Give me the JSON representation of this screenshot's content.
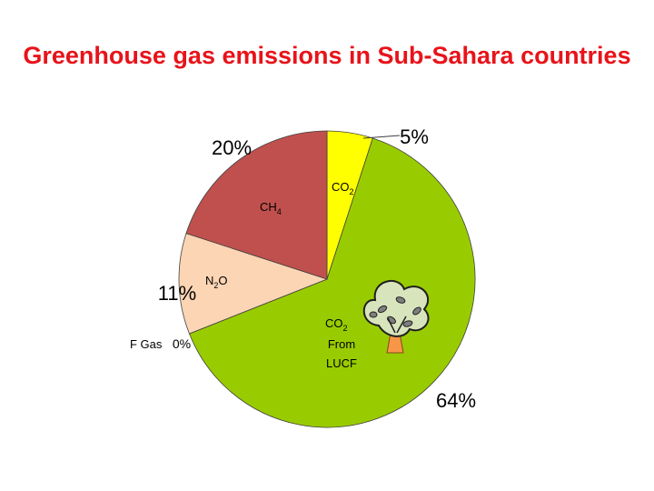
{
  "colors": {
    "title": "#e8131a",
    "co2": "#ffff00",
    "co2_lucf": "#99cc00",
    "ch4": "#c0504d",
    "n2o": "#fcd5b4",
    "fgas": "#d9d9d9",
    "slice_border": "#404040"
  },
  "chart_data": {
    "type": "pie",
    "title": "Greenhouse gas emissions in Sub-Sahara countries",
    "slices": [
      {
        "key": "co2",
        "label": "CO",
        "sub": "2",
        "label_after": "",
        "value": 5,
        "value_label": "5%"
      },
      {
        "key": "co2_lucf",
        "label": "CO",
        "sub": "2",
        "label_after": "",
        "label_lines": [
          "From",
          "LUCF"
        ],
        "value": 64,
        "value_label": "64%"
      },
      {
        "key": "fgas",
        "label": "F Gas",
        "sub": "",
        "label_after": "",
        "value": 0,
        "value_label": "0%"
      },
      {
        "key": "n2o",
        "label": "N",
        "sub": "2",
        "label_after": "O",
        "value": 11,
        "value_label": "11%"
      },
      {
        "key": "ch4",
        "label": "CH",
        "sub": "4",
        "label_after": "",
        "value": 20,
        "value_label": "20%"
      }
    ]
  },
  "decoration": {
    "icon": "tree-icon"
  }
}
